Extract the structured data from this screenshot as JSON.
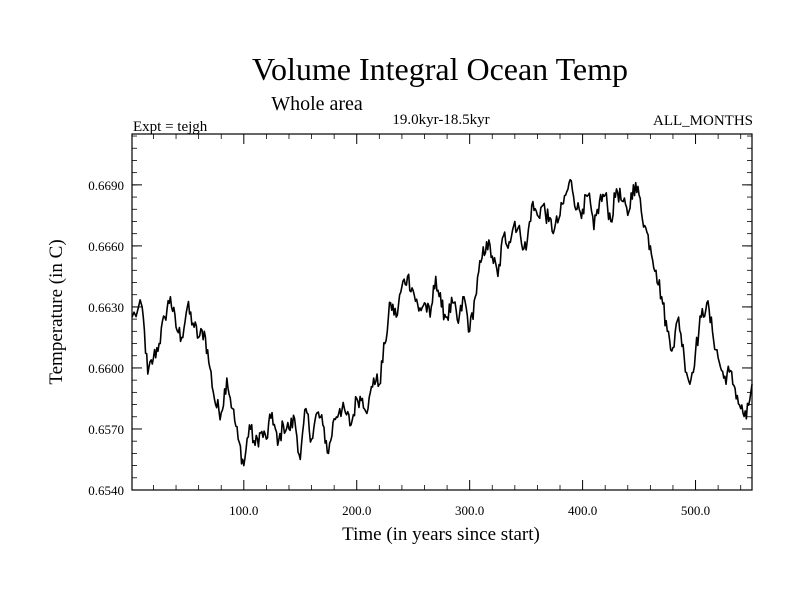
{
  "chart_data": {
    "type": "line",
    "title": "Volume Integral Ocean Temp",
    "subtitle": "Whole area",
    "period": "19.0kyr-18.5kyr",
    "experiment": "Expt = tejgh",
    "season": "ALL_MONTHS",
    "xlabel": "Time (in years since start)",
    "ylabel": "Temperature (in C)",
    "xlim": [
      1,
      550
    ],
    "ylim": [
      0.654,
      0.6715
    ],
    "xticks": [
      100,
      200,
      300,
      400,
      500
    ],
    "xtick_labels": [
      "100.0",
      "200.0",
      "300.0",
      "400.0",
      "500.0"
    ],
    "yticks": [
      0.654,
      0.657,
      0.66,
      0.663,
      0.666,
      0.669
    ],
    "ytick_labels": [
      "0.6540",
      "0.6570",
      "0.6600",
      "0.6630",
      "0.6660",
      "0.6690"
    ],
    "series": [
      {
        "name": "Volume integral ocean temperature",
        "color": "#000000",
        "x": [
          1,
          10,
          15,
          20,
          25,
          30,
          35,
          40,
          45,
          50,
          55,
          60,
          65,
          70,
          75,
          80,
          85,
          90,
          95,
          100,
          105,
          110,
          115,
          120,
          125,
          130,
          135,
          140,
          145,
          150,
          155,
          160,
          165,
          170,
          175,
          180,
          185,
          190,
          195,
          200,
          205,
          210,
          215,
          220,
          225,
          230,
          235,
          240,
          245,
          250,
          255,
          260,
          265,
          270,
          275,
          280,
          285,
          290,
          295,
          300,
          305,
          310,
          315,
          320,
          325,
          330,
          335,
          340,
          345,
          350,
          355,
          360,
          365,
          370,
          375,
          380,
          385,
          390,
          395,
          400,
          405,
          410,
          415,
          420,
          425,
          430,
          435,
          440,
          445,
          450,
          455,
          460,
          465,
          470,
          475,
          480,
          485,
          490,
          495,
          500,
          505,
          510,
          515,
          520,
          525,
          530,
          535,
          540,
          545,
          550
        ],
        "values": [
          0.6625,
          0.663,
          0.6597,
          0.6605,
          0.6612,
          0.6625,
          0.6635,
          0.662,
          0.6615,
          0.663,
          0.6622,
          0.6615,
          0.6618,
          0.66,
          0.6582,
          0.6578,
          0.6595,
          0.658,
          0.6565,
          0.6552,
          0.6572,
          0.6562,
          0.6568,
          0.6565,
          0.6578,
          0.6562,
          0.6572,
          0.657,
          0.6575,
          0.6555,
          0.658,
          0.6565,
          0.6578,
          0.6572,
          0.6558,
          0.6575,
          0.658,
          0.6578,
          0.6572,
          0.6585,
          0.6585,
          0.658,
          0.6595,
          0.6592,
          0.6612,
          0.6632,
          0.6625,
          0.664,
          0.6645,
          0.6638,
          0.6628,
          0.6632,
          0.6625,
          0.6645,
          0.663,
          0.6625,
          0.6632,
          0.6622,
          0.6635,
          0.6618,
          0.6635,
          0.6652,
          0.6662,
          0.6655,
          0.6645,
          0.6665,
          0.6662,
          0.6672,
          0.6665,
          0.6658,
          0.668,
          0.6675,
          0.668,
          0.6672,
          0.6668,
          0.6675,
          0.6685,
          0.6692,
          0.6678,
          0.6678,
          0.6685,
          0.6668,
          0.6682,
          0.6685,
          0.6672,
          0.6688,
          0.6682,
          0.6675,
          0.669,
          0.6685,
          0.667,
          0.666,
          0.6648,
          0.6635,
          0.6618,
          0.661,
          0.6625,
          0.6605,
          0.6592,
          0.6608,
          0.6625,
          0.6632,
          0.6618,
          0.6605,
          0.6595,
          0.6598,
          0.659,
          0.658,
          0.6575,
          0.6592
        ]
      }
    ]
  }
}
